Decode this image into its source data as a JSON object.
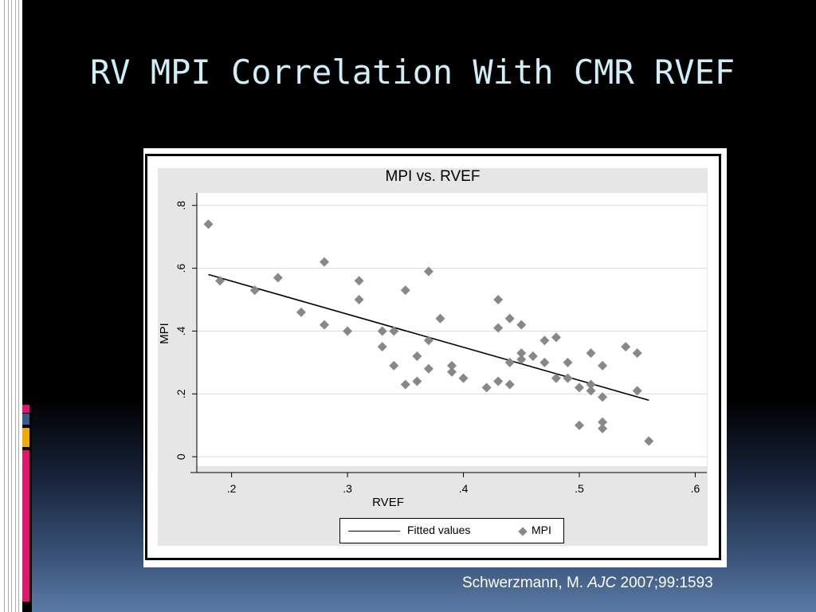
{
  "slide": {
    "title": "RV MPI Correlation With CMR RVEF",
    "citation_author": "Schwerzmann, M.",
    "citation_journal": "AJC",
    "citation_ref": "2007;99:1593",
    "accent_colors": [
      "#e0156e",
      "#3a5a8a",
      "#f2a900",
      "#e0156e"
    ]
  },
  "chart_data": {
    "type": "scatter",
    "title": "MPI vs. RVEF",
    "xlabel": "RVEF",
    "ylabel": "MPI",
    "xlim": [
      0.17,
      0.61
    ],
    "ylim": [
      -0.03,
      0.84
    ],
    "xticks": [
      0.2,
      0.3,
      0.4,
      0.5,
      0.6
    ],
    "xtick_labels": [
      ".2",
      ".3",
      ".4",
      ".5",
      ".6"
    ],
    "yticks": [
      0,
      0.2,
      0.4,
      0.6,
      0.8
    ],
    "ytick_labels": [
      "0",
      ".2",
      ".4",
      ".6",
      ".8"
    ],
    "grid": "horizontal",
    "legend_position": "bottom",
    "series": [
      {
        "name": "MPI",
        "marker": "diamond",
        "color": "#888888",
        "points": [
          [
            0.18,
            0.74
          ],
          [
            0.19,
            0.56
          ],
          [
            0.22,
            0.53
          ],
          [
            0.24,
            0.57
          ],
          [
            0.26,
            0.46
          ],
          [
            0.28,
            0.62
          ],
          [
            0.28,
            0.42
          ],
          [
            0.3,
            0.4
          ],
          [
            0.31,
            0.56
          ],
          [
            0.31,
            0.5
          ],
          [
            0.33,
            0.4
          ],
          [
            0.33,
            0.35
          ],
          [
            0.34,
            0.4
          ],
          [
            0.34,
            0.29
          ],
          [
            0.35,
            0.53
          ],
          [
            0.35,
            0.23
          ],
          [
            0.36,
            0.32
          ],
          [
            0.36,
            0.24
          ],
          [
            0.37,
            0.59
          ],
          [
            0.37,
            0.37
          ],
          [
            0.37,
            0.28
          ],
          [
            0.38,
            0.44
          ],
          [
            0.39,
            0.29
          ],
          [
            0.39,
            0.27
          ],
          [
            0.4,
            0.25
          ],
          [
            0.42,
            0.22
          ],
          [
            0.43,
            0.5
          ],
          [
            0.43,
            0.41
          ],
          [
            0.43,
            0.24
          ],
          [
            0.44,
            0.44
          ],
          [
            0.44,
            0.3
          ],
          [
            0.44,
            0.23
          ],
          [
            0.45,
            0.42
          ],
          [
            0.45,
            0.33
          ],
          [
            0.45,
            0.31
          ],
          [
            0.46,
            0.32
          ],
          [
            0.47,
            0.37
          ],
          [
            0.47,
            0.3
          ],
          [
            0.48,
            0.38
          ],
          [
            0.48,
            0.25
          ],
          [
            0.49,
            0.3
          ],
          [
            0.49,
            0.25
          ],
          [
            0.5,
            0.22
          ],
          [
            0.5,
            0.1
          ],
          [
            0.51,
            0.33
          ],
          [
            0.51,
            0.23
          ],
          [
            0.51,
            0.21
          ],
          [
            0.52,
            0.29
          ],
          [
            0.52,
            0.19
          ],
          [
            0.52,
            0.11
          ],
          [
            0.52,
            0.09
          ],
          [
            0.54,
            0.35
          ],
          [
            0.55,
            0.33
          ],
          [
            0.55,
            0.21
          ],
          [
            0.56,
            0.05
          ]
        ]
      },
      {
        "name": "Fitted values",
        "type": "line",
        "color": "#000000",
        "points": [
          [
            0.18,
            0.58
          ],
          [
            0.56,
            0.18
          ]
        ]
      }
    ]
  }
}
